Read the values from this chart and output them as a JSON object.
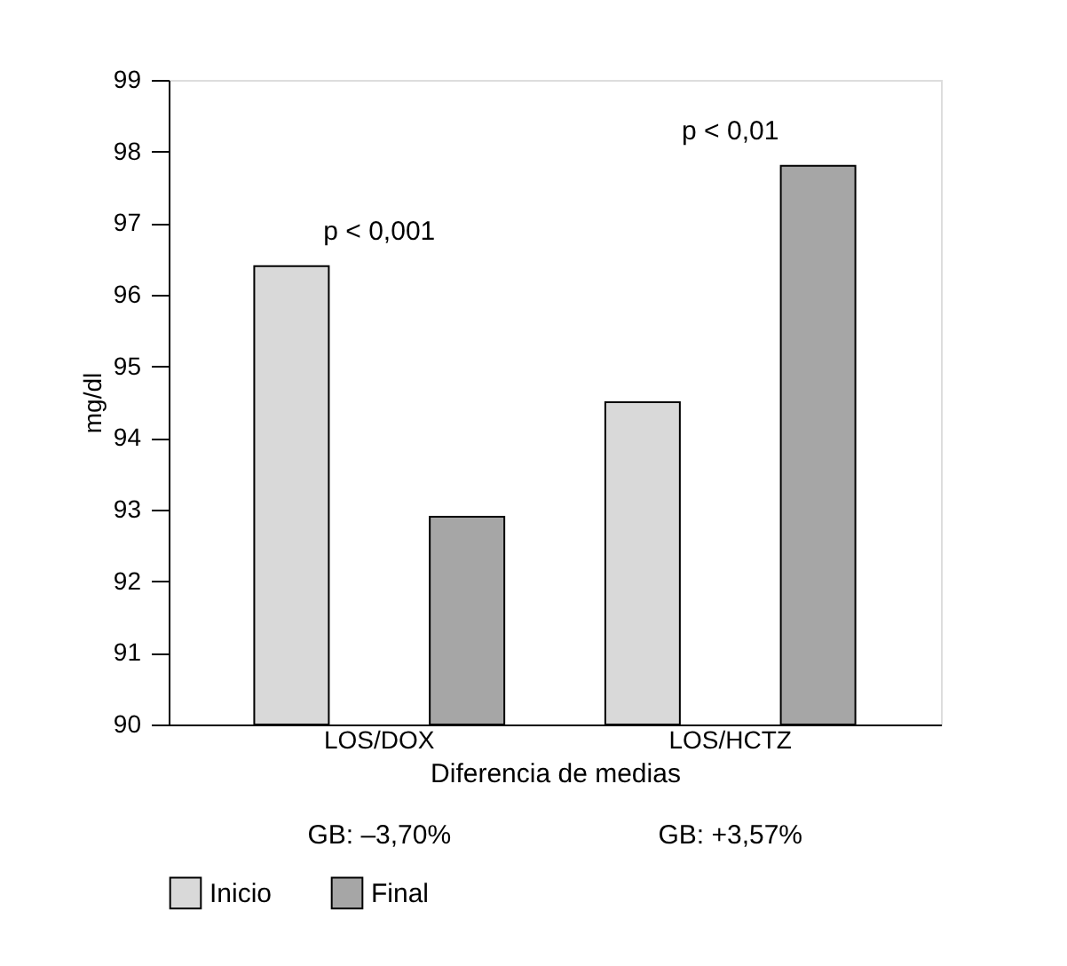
{
  "chart_data": {
    "type": "bar",
    "ylabel": "mg/dl",
    "xlabel": "Diferencia de medias",
    "categories": [
      "LOS/DOX",
      "LOS/HCTZ"
    ],
    "series": [
      {
        "name": "Inicio",
        "color": "#d9d9d9",
        "values": [
          96.4,
          94.5
        ]
      },
      {
        "name": "Final",
        "color": "#a6a6a6",
        "values": [
          92.9,
          97.8
        ]
      }
    ],
    "ylim": [
      90,
      99
    ],
    "yticks": [
      90,
      91,
      92,
      93,
      94,
      95,
      96,
      97,
      98,
      99
    ],
    "grid": false,
    "legend": "bottom",
    "annotations": [
      "p < 0,001",
      "p < 0,01",
      "GB: –3,70%",
      "GB: +3,57%"
    ]
  }
}
